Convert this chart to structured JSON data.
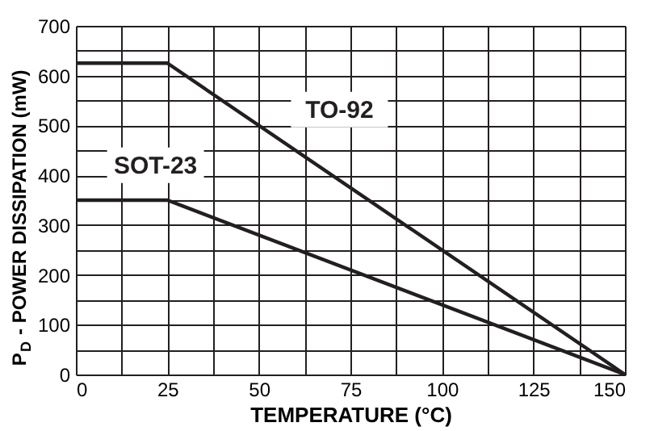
{
  "chart_data": {
    "type": "line",
    "xlabel": "TEMPERATURE (°C)",
    "ylabel": "P$_{D}$ - POWER DISSIPATION (mW)",
    "series": [
      {
        "name": "TO-92",
        "color": "#231f20",
        "x": [
          0,
          25,
          150
        ],
        "values": [
          625,
          625,
          0
        ]
      },
      {
        "name": "SOT-23",
        "color": "#231f20",
        "x": [
          0,
          25,
          150
        ],
        "values": [
          350,
          350,
          0
        ]
      }
    ],
    "xlim": [
      0,
      150
    ],
    "ylim": [
      0,
      700
    ],
    "xticks": [
      0,
      {
        "value": 12.5,
        "label": null
      },
      25,
      {
        "value": 37.5,
        "label": null
      },
      50,
      {
        "value": 62.5,
        "label": null
      },
      75,
      {
        "value": 87.5,
        "label": null
      },
      100,
      {
        "value": 112.5,
        "label": null
      },
      125,
      {
        "value": 137.5,
        "label": null
      },
      150
    ],
    "yticks": [
      0,
      {
        "value": 50,
        "label": null
      },
      100,
      {
        "value": 150,
        "label": null
      },
      200,
      {
        "value": 250,
        "label": null
      },
      300,
      {
        "value": 350,
        "label": null
      },
      400,
      {
        "value": 450,
        "label": null
      },
      500,
      {
        "value": 550,
        "label": null
      },
      600,
      {
        "value": 650,
        "label": null
      },
      700
    ],
    "grid": true,
    "legend": false,
    "marker": "none",
    "line_style": "solid"
  }
}
